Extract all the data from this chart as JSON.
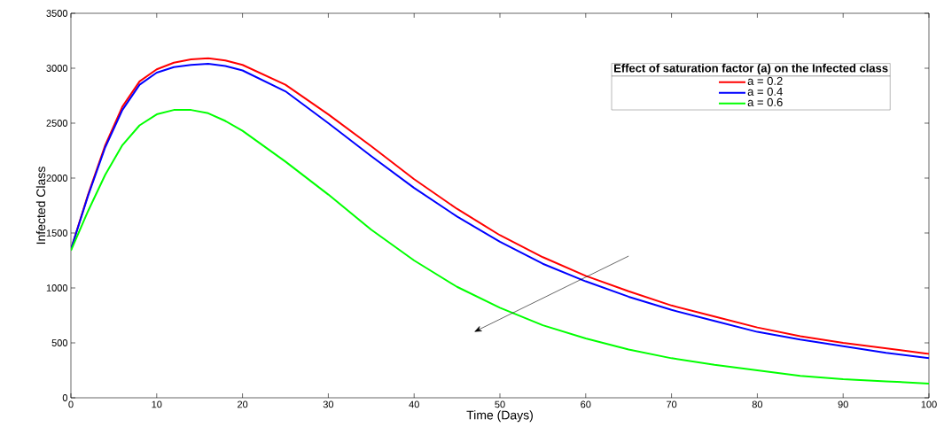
{
  "chart_data": {
    "type": "line",
    "xlabel": "Time (Days)",
    "ylabel": "Infected Class",
    "legend_title": "Effect of saturation factor (a) on the Infected class",
    "legend": "top right",
    "x": [
      0,
      2,
      4,
      6,
      8,
      10,
      12,
      14,
      16,
      18,
      20,
      25,
      30,
      35,
      40,
      45,
      50,
      55,
      60,
      65,
      70,
      75,
      80,
      85,
      90,
      95,
      100
    ],
    "series": [
      {
        "name": "a = 0.2",
        "color": "#ff0000",
        "values": [
          1350,
          1850,
          2300,
          2650,
          2880,
          2990,
          3050,
          3080,
          3090,
          3070,
          3030,
          2850,
          2580,
          2290,
          1990,
          1720,
          1480,
          1280,
          1110,
          970,
          840,
          740,
          640,
          560,
          500,
          450,
          400
        ]
      },
      {
        "name": "a = 0.4",
        "color": "#0000ff",
        "values": [
          1350,
          1840,
          2280,
          2620,
          2850,
          2960,
          3010,
          3030,
          3040,
          3020,
          2980,
          2790,
          2500,
          2200,
          1910,
          1650,
          1420,
          1220,
          1060,
          920,
          800,
          700,
          600,
          530,
          470,
          410,
          360
        ]
      },
      {
        "name": "a = 0.6",
        "color": "#00ff00",
        "values": [
          1340,
          1700,
          2030,
          2300,
          2480,
          2580,
          2620,
          2620,
          2590,
          2520,
          2430,
          2150,
          1850,
          1530,
          1250,
          1010,
          820,
          660,
          540,
          440,
          360,
          300,
          250,
          200,
          170,
          150,
          130
        ]
      }
    ],
    "xlim": [
      0,
      100
    ],
    "ylim": [
      0,
      3500
    ],
    "xticks": [
      0,
      10,
      20,
      30,
      40,
      50,
      60,
      70,
      80,
      90,
      100
    ],
    "yticks": [
      0,
      500,
      1000,
      1500,
      2000,
      2500,
      3000,
      3500
    ],
    "grid": false,
    "marker": "none",
    "line_style": "solid"
  }
}
